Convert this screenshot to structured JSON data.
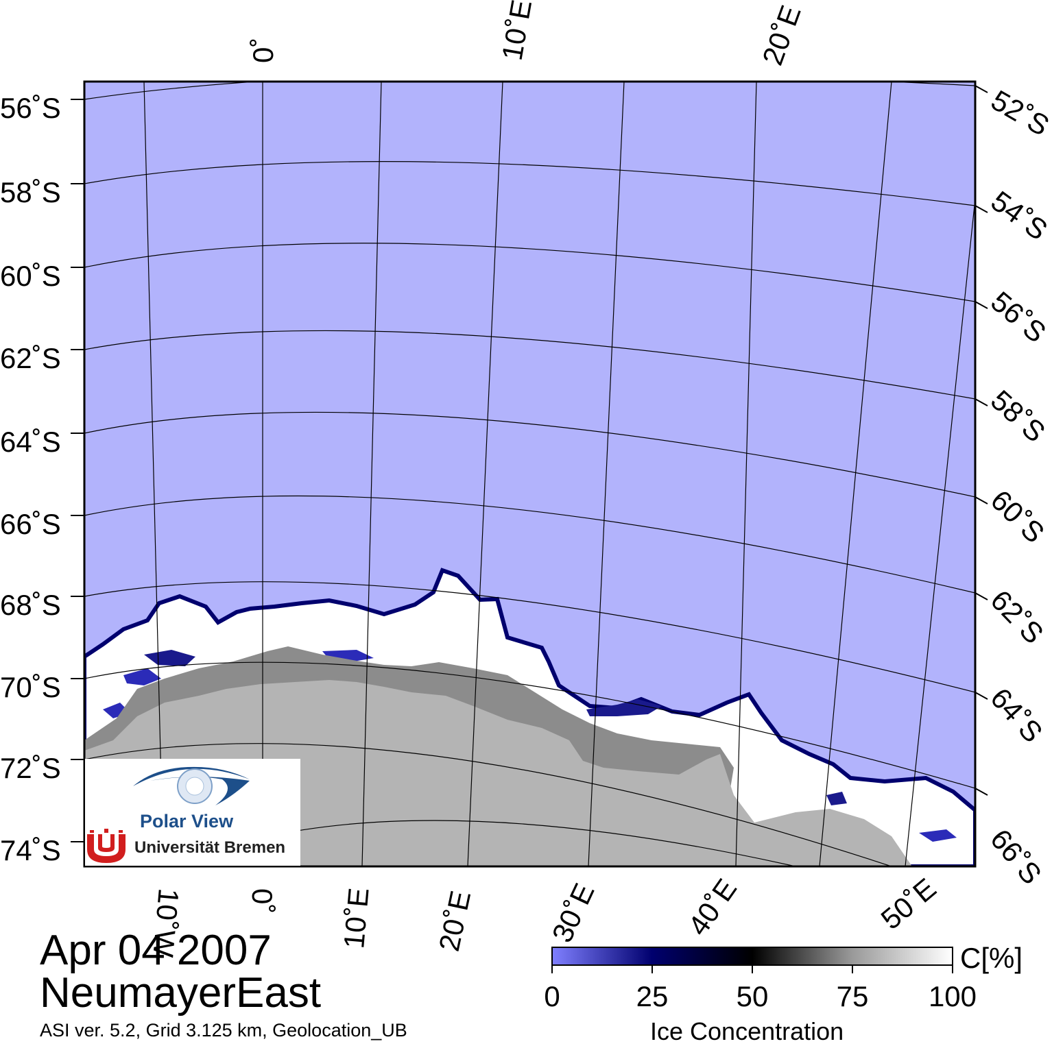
{
  "map": {
    "latitude_labels_left": [
      "56˚S",
      "58˚S",
      "60˚S",
      "62˚S",
      "64˚S",
      "66˚S",
      "68˚S",
      "70˚S",
      "72˚S",
      "74˚S"
    ],
    "latitude_labels_right": [
      "52˚S",
      "54˚S",
      "56˚S",
      "58˚S",
      "60˚S",
      "62˚S",
      "64˚S",
      "66˚S"
    ],
    "longitude_labels_top": [
      "0˚",
      "10˚E",
      "20˚E"
    ],
    "longitude_labels_bottom": [
      "10˚W",
      "0˚",
      "10˚E",
      "20˚E",
      "30˚E",
      "40˚E",
      "50˚E"
    ],
    "colors": {
      "open_water": "#b2b3fc",
      "land": "#b4b4b4",
      "ice_shelf": "#8c8c8c",
      "sea_ice": "#ffffff",
      "graticule": "#000000"
    }
  },
  "footer": {
    "date": "Apr 04 2007",
    "region": "NeumayerEast",
    "info": "ASI ver. 5.2,  Grid 3.125 km, Geolocation_UB"
  },
  "colorbar": {
    "unit": "C[%]",
    "ticks": [
      "0",
      "25",
      "50",
      "75",
      "100"
    ],
    "title": "Ice Concentration",
    "color_stops": [
      "#8080ff",
      "#00006e",
      "#000000",
      "#9a9a9a",
      "#ffffff"
    ]
  },
  "logo": {
    "title": "Polar View",
    "institution": "Universität Bremen"
  }
}
